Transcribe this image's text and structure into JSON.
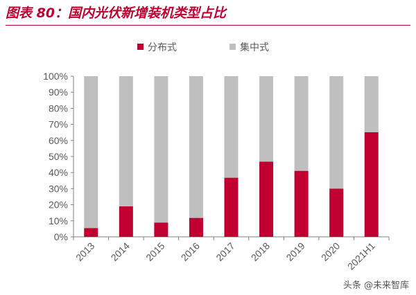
{
  "title": "图表 80：国内光伏新增装机类型占比",
  "watermark": "头条 @未来智库",
  "chart_data": {
    "type": "bar",
    "stacked": true,
    "categories": [
      "2013",
      "2014",
      "2015",
      "2016",
      "2017",
      "2018",
      "2019",
      "2020",
      "2021H1"
    ],
    "series": [
      {
        "name": "分布式",
        "color": "#c00030",
        "values": [
          5.5,
          19,
          8.9,
          11.8,
          36.8,
          46.8,
          41.1,
          30,
          65.1
        ]
      },
      {
        "name": "集中式",
        "color": "#bfbfbf",
        "values": [
          94.5,
          81,
          91.1,
          88.2,
          63.2,
          53.2,
          58.9,
          70,
          34.9
        ]
      }
    ],
    "yticks": [
      "0%",
      "10%",
      "20%",
      "30%",
      "40%",
      "50%",
      "60%",
      "70%",
      "80%",
      "90%",
      "100%"
    ],
    "ylim": [
      0,
      100
    ],
    "legend": "top",
    "grid": false
  }
}
